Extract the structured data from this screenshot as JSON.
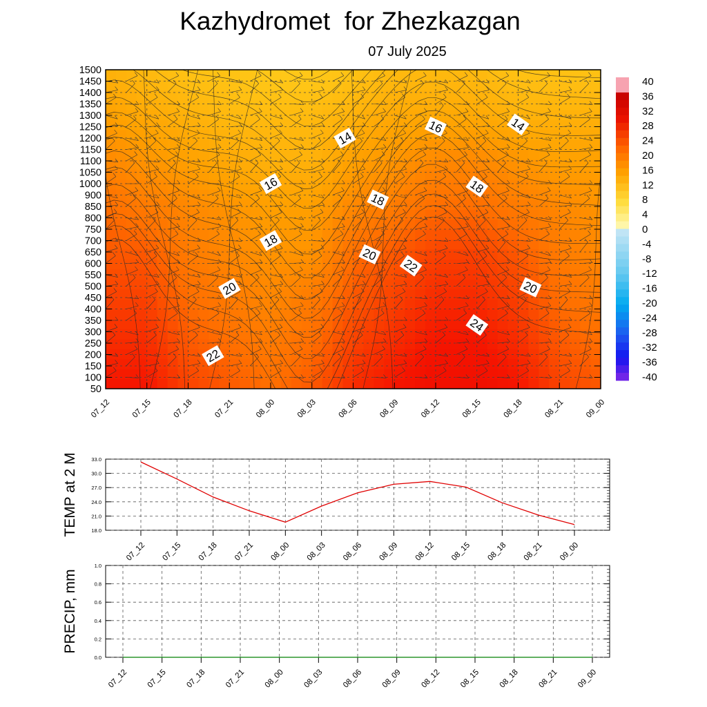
{
  "title": "Kazhydromet  for Zhezkazgan",
  "subtitle": "07 July 2025",
  "chart_data": [
    {
      "type": "heatmap",
      "description_panel": "cross-section",
      "x_labels": [
        "07_12",
        "07_15",
        "07_18",
        "07_21",
        "08_00",
        "08_03",
        "08_06",
        "08_09",
        "08_12",
        "08_15",
        "08_18",
        "08_21",
        "09_00"
      ],
      "y_labels": [
        "50",
        "100",
        "150",
        "200",
        "250",
        "300",
        "350",
        "400",
        "450",
        "500",
        "550",
        "600",
        "650",
        "700",
        "750",
        "800",
        "850",
        "900",
        "1000",
        "1050",
        "1100",
        "1150",
        "1200",
        "1250",
        "1300",
        "1350",
        "1400",
        "1450",
        "1500"
      ],
      "z_grid_rows_bottom_to_top": [
        [
          24,
          24,
          22,
          21,
          20,
          21,
          23,
          24,
          25,
          25,
          24,
          22,
          21
        ],
        [
          23,
          23,
          21,
          20,
          19,
          20,
          22,
          23,
          24,
          24,
          23,
          21,
          20
        ],
        [
          22,
          22,
          20,
          19,
          18,
          19,
          21,
          22,
          23,
          23,
          22,
          20,
          19
        ],
        [
          21,
          21,
          19,
          18,
          17,
          17,
          20,
          21,
          22,
          22,
          21,
          19,
          18
        ],
        [
          20,
          19,
          18,
          17,
          16,
          16,
          18,
          19,
          20,
          20,
          19,
          18,
          17
        ],
        [
          18,
          17,
          16,
          15,
          14,
          14,
          16,
          17,
          18,
          18,
          17,
          16,
          16
        ],
        [
          16,
          15,
          14,
          13,
          13,
          13,
          14,
          15,
          15,
          15,
          14,
          14,
          14
        ],
        [
          14,
          13,
          12,
          12,
          11,
          11,
          12,
          13,
          13,
          13,
          12,
          12,
          12
        ]
      ],
      "contour_labels": [
        {
          "text": "14",
          "x": 5.8,
          "y": 1200
        },
        {
          "text": "16",
          "x": 8.0,
          "y": 1250
        },
        {
          "text": "14",
          "x": 10.0,
          "y": 1260
        },
        {
          "text": "16",
          "x": 4.0,
          "y": 1000
        },
        {
          "text": "18",
          "x": 6.6,
          "y": 880
        },
        {
          "text": "18",
          "x": 9.0,
          "y": 975
        },
        {
          "text": "18",
          "x": 4.0,
          "y": 700
        },
        {
          "text": "20",
          "x": 6.4,
          "y": 640
        },
        {
          "text": "22",
          "x": 7.4,
          "y": 590
        },
        {
          "text": "20",
          "x": 3.0,
          "y": 490
        },
        {
          "text": "20",
          "x": 10.3,
          "y": 495
        },
        {
          "text": "24",
          "x": 9.0,
          "y": 330
        },
        {
          "text": "22",
          "x": 2.6,
          "y": 195
        }
      ],
      "colorbar_labels": [
        "40",
        "36",
        "32",
        "28",
        "24",
        "20",
        "16",
        "12",
        "8",
        "4",
        "0",
        "-4",
        "-8",
        "-12",
        "-16",
        "-20",
        "-24",
        "-28",
        "-32",
        "-36",
        "-40"
      ],
      "colorbar_range": [
        -40,
        40
      ],
      "colors": {
        "warm_max": "#ff0000",
        "warm_mid": "#ff8c00",
        "warm_low": "#ffc800",
        "cold": "#3366ff"
      }
    },
    {
      "type": "line",
      "ylabel": "TEMP at 2 M",
      "x": [
        "07_12",
        "07_15",
        "07_18",
        "07_21",
        "08_00",
        "08_03",
        "08_06",
        "08_09",
        "08_12",
        "08_15",
        "08_18",
        "08_21",
        "09_00"
      ],
      "values": [
        32.4,
        28.8,
        25.0,
        22.1,
        19.7,
        23.1,
        25.9,
        27.7,
        28.3,
        27.1,
        23.8,
        21.2,
        19.2
      ],
      "ylim": [
        18.0,
        33.0
      ],
      "yticks": [
        "33.0",
        "30.0",
        "27.0",
        "24.0",
        "21.0",
        "18.0"
      ],
      "color": "#e00000",
      "grid": true
    },
    {
      "type": "line",
      "ylabel": "PRECIP, mm",
      "x": [
        "07_12",
        "07_15",
        "07_18",
        "07_21",
        "08_00",
        "08_03",
        "08_06",
        "08_09",
        "08_12",
        "08_15",
        "08_18",
        "08_21",
        "09_00"
      ],
      "values": [
        0,
        0,
        0,
        0,
        0,
        0,
        0,
        0,
        0,
        0,
        0,
        0,
        0
      ],
      "ylim": [
        0.0,
        1.0
      ],
      "yticks": [
        "1.0",
        "0.8",
        "0.6",
        "0.4",
        "0.2",
        "0.0"
      ],
      "color": "#008000",
      "grid": true
    }
  ]
}
